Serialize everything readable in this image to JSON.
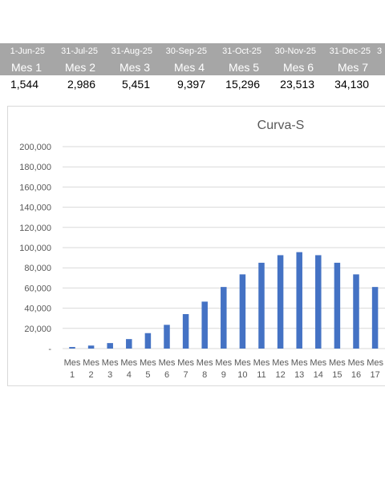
{
  "sheet": {
    "dates": [
      "1-Jun-25",
      "31-Jul-25",
      "31-Aug-25",
      "30-Sep-25",
      "31-Oct-25",
      "30-Nov-25",
      "31-Dec-25",
      "3"
    ],
    "months": [
      "Mes 1",
      "Mes 2",
      "Mes 3",
      "Mes 4",
      "Mes 5",
      "Mes 6",
      "Mes 7"
    ],
    "values": [
      "1,544",
      "2,986",
      "5,451",
      "9,397",
      "15,296",
      "23,513",
      "34,130"
    ]
  },
  "colors": {
    "header_bg": "#a6a6a6",
    "bar": "#4472c4",
    "grid": "#d9d9d9"
  },
  "chart_data": {
    "type": "bar",
    "title": "Curva-S",
    "xlabel": "",
    "ylabel": "",
    "categories": [
      "Mes 1",
      "Mes 2",
      "Mes 3",
      "Mes 4",
      "Mes 5",
      "Mes 6",
      "Mes 7",
      "Mes 8",
      "Mes 9",
      "Mes 10",
      "Mes 11",
      "Mes 12",
      "Mes 13",
      "Mes 14",
      "Mes 15",
      "Mes 16",
      "Mes 17"
    ],
    "values": [
      1544,
      2986,
      5451,
      9397,
      15296,
      23513,
      34130,
      46500,
      61000,
      73500,
      85000,
      92500,
      95500,
      92500,
      85000,
      73500,
      61000
    ],
    "ylim": [
      0,
      200000
    ],
    "yticks": [
      0,
      20000,
      40000,
      60000,
      80000,
      100000,
      120000,
      140000,
      160000,
      180000,
      200000
    ],
    "ytick_labels": [
      "-",
      "20,000",
      "40,000",
      "60,000",
      "80,000",
      "100,000",
      "120,000",
      "140,000",
      "160,000",
      "180,000",
      "200,000"
    ],
    "grid": true,
    "legend": "none"
  }
}
